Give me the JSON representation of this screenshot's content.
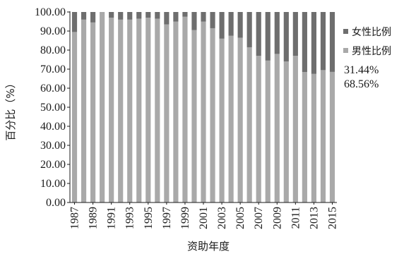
{
  "chart_data": {
    "type": "bar",
    "stacked": true,
    "categories": [
      "1987",
      "1988",
      "1989",
      "1990",
      "1991",
      "1992",
      "1993",
      "1994",
      "1995",
      "1996",
      "1997",
      "1998",
      "1999",
      "2000",
      "2001",
      "2002",
      "2003",
      "2004",
      "2005",
      "2006",
      "2007",
      "2008",
      "2009",
      "2010",
      "2011",
      "2012",
      "2013",
      "2014",
      "2015"
    ],
    "x_tick_labels": [
      "1987",
      "1989",
      "1991",
      "1993",
      "1995",
      "1997",
      "1999",
      "2001",
      "2003",
      "2005",
      "2007",
      "2009",
      "2011",
      "2013",
      "2015"
    ],
    "series": [
      {
        "name": "男性比例",
        "color": "#a9a9a9",
        "values": [
          89.5,
          96,
          94.5,
          100,
          97,
          96,
          96,
          96.5,
          97,
          96.5,
          93.5,
          95,
          97.5,
          90.5,
          95,
          91.5,
          86,
          87.5,
          86.5,
          81.5,
          77,
          74.5,
          78,
          74,
          77,
          68.5,
          67.5,
          69.5,
          68.56
        ]
      },
      {
        "name": "女性比例",
        "color": "#6e6e6e",
        "values": [
          10.5,
          4,
          5.5,
          0,
          3,
          4,
          4,
          3.5,
          3,
          3.5,
          6.5,
          5,
          2.5,
          9.5,
          5,
          8.5,
          14,
          12.5,
          13.5,
          18.5,
          23,
          25.5,
          22,
          26,
          23,
          31.5,
          32.5,
          30.5,
          31.44
        ]
      }
    ],
    "yticks": [
      "0.00",
      "10.00",
      "20.00",
      "30.00",
      "40.00",
      "50.00",
      "60.00",
      "70.00",
      "80.00",
      "90.00",
      "100.00"
    ],
    "ylim": [
      0,
      100
    ],
    "xlabel": "资助年度",
    "ylabel": "百分比（%）",
    "legend_position": "right",
    "annotations": [
      "31.44%",
      "68.56%"
    ]
  }
}
